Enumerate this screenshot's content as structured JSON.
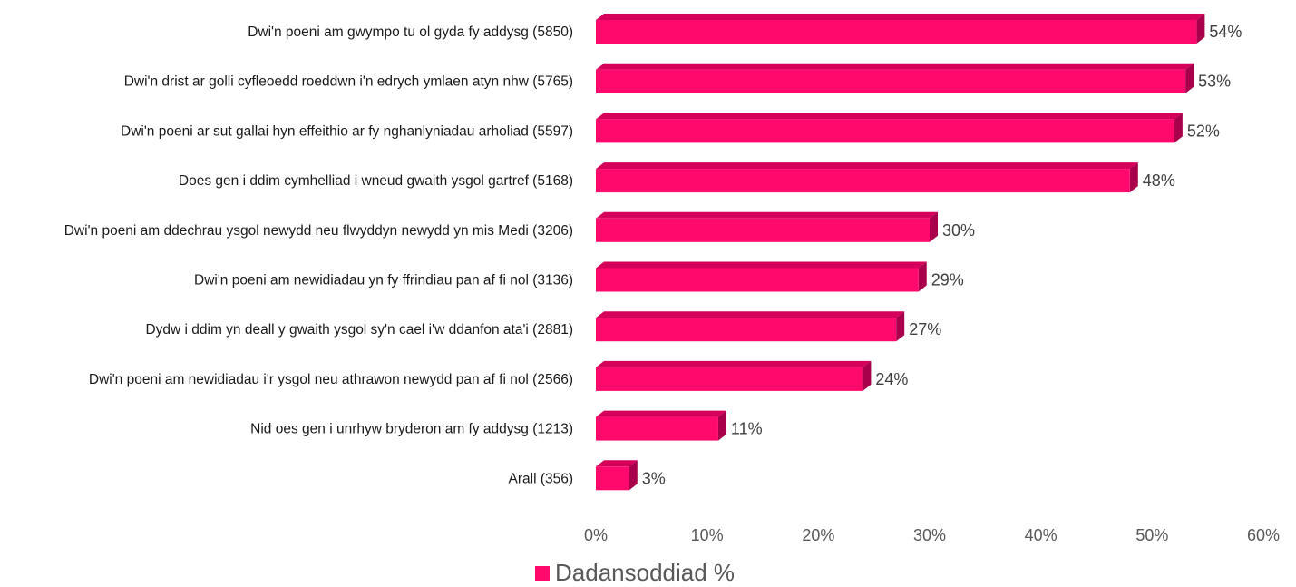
{
  "chart_data": {
    "type": "bar",
    "orientation": "horizontal",
    "style": "3d",
    "categories": [
      "Dwi'n poeni am gwympo tu ol gyda fy addysg (5850)",
      "Dwi'n drist ar golli cyfleoedd roeddwn i'n edrych ymlaen atyn nhw (5765)",
      "Dwi'n poeni ar sut gallai hyn effeithio ar fy nghanlyniadau arholiad  (5597)",
      "Does gen i ddim cymhelliad i wneud gwaith ysgol gartref (5168)",
      "Dwi'n poeni am ddechrau ysgol newydd neu flwyddyn newydd yn mis Medi (3206)",
      "Dwi'n poeni am newidiadau yn fy ffrindiau pan af fi nol (3136)",
      "Dydw i ddim yn deall y gwaith ysgol sy'n cael i'w ddanfon ata'i (2881)",
      "Dwi'n poeni am newidiadau i'r ysgol neu athrawon newydd pan af fi nol (2566)",
      "Nid oes gen i unrhyw bryderon am fy addysg (1213)",
      "Arall (356)"
    ],
    "series": [
      {
        "name": "Dadansoddiad %",
        "values": [
          54,
          53,
          52,
          48,
          30,
          29,
          27,
          24,
          11,
          3
        ],
        "labels": [
          "54%",
          "53%",
          "52%",
          "48%",
          "30%",
          "29%",
          "27%",
          "24%",
          "11%",
          "3%"
        ]
      }
    ],
    "xlim": [
      0,
      60
    ],
    "xticks": [
      "0%",
      "10%",
      "20%",
      "30%",
      "40%",
      "50%",
      "60%"
    ],
    "xlabel": "",
    "ylabel": "",
    "title": "",
    "grid": false,
    "legend_position": "bottom"
  },
  "legend": {
    "label": "Dadansoddiad %"
  },
  "colors": {
    "bar_front": "#FF0A6C",
    "bar_top": "#D4005A",
    "bar_side": "#A8004A"
  }
}
